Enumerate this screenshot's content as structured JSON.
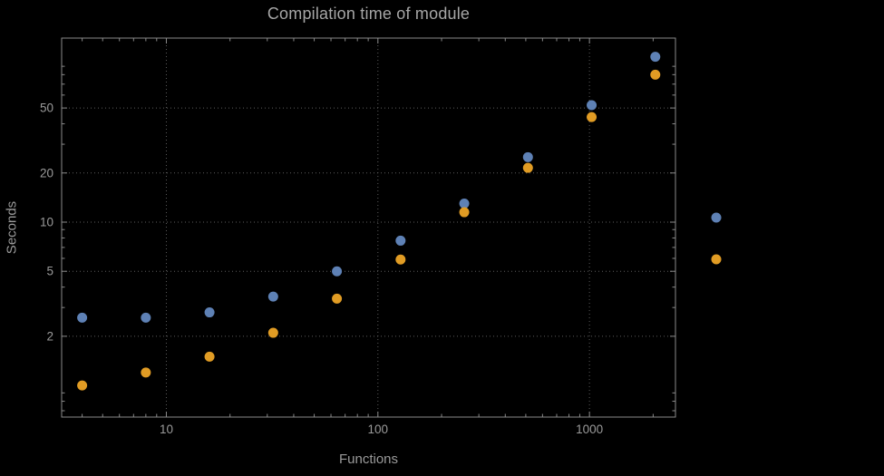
{
  "chart_data": {
    "type": "scatter",
    "title": "Compilation time of module",
    "xlabel": "Functions",
    "ylabel": "Seconds",
    "xscale": "log",
    "yscale": "log",
    "xlim": [
      3.2,
      2550
    ],
    "ylim": [
      0.64,
      134
    ],
    "xticks": [
      10,
      100,
      1000
    ],
    "yticks": [
      2,
      5,
      10,
      20,
      50
    ],
    "grid": "dotted",
    "frame": true,
    "x": [
      4,
      8,
      16,
      32,
      64,
      128,
      256,
      512,
      1024,
      2048
    ],
    "series": [
      {
        "name": "blue",
        "color": "#5e81b5",
        "values": [
          2.6,
          2.6,
          2.8,
          3.5,
          5.0,
          7.7,
          13,
          25,
          52,
          103
        ]
      },
      {
        "name": "orange",
        "color": "#e19c24",
        "values": [
          1.0,
          1.2,
          1.5,
          2.1,
          3.4,
          5.9,
          11.5,
          21.5,
          44,
          80
        ]
      }
    ],
    "legend": {
      "position": "right-of-frame",
      "items": [
        {
          "name": "blue-marker",
          "color": "#5e81b5"
        },
        {
          "name": "orange-marker",
          "color": "#e19c24"
        }
      ]
    }
  },
  "colors": {
    "background": "#000000",
    "frame": "#8a8a8a",
    "tick": "#8a8a8a",
    "grid": "#5c5c5c",
    "text": "#9a9a9a",
    "title": "#a6a6a6"
  }
}
